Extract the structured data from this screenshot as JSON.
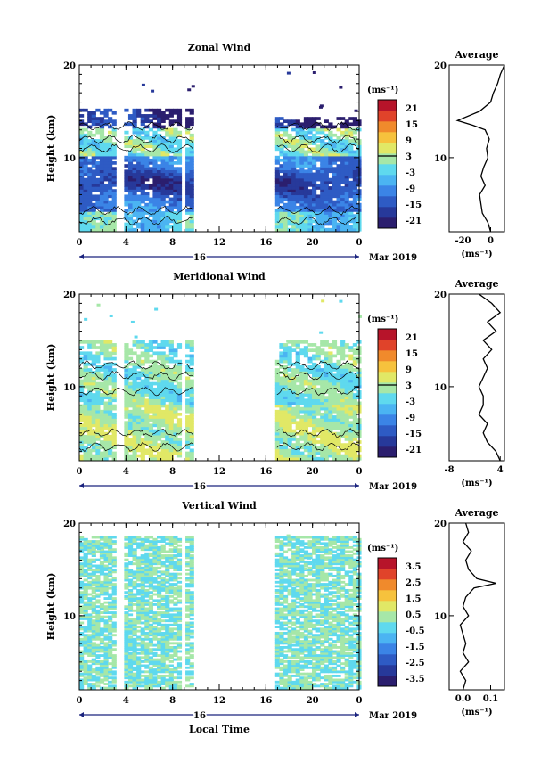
{
  "figure": {
    "xlabel": "Local Time",
    "date_label": "Mar 2019",
    "day_label": "16",
    "ylabel": "Height (km)",
    "unit_label": "(ms⁻¹)",
    "average_title": "Average"
  },
  "chart_data": [
    {
      "type": "heatmap",
      "title": "Zonal Wind",
      "xlabel": "Local Time",
      "ylabel": "Height (km)",
      "x_ticks": [
        "0",
        "4",
        "8",
        "12",
        "16",
        "20",
        "0"
      ],
      "xlim": [
        0,
        24
      ],
      "y_ticks": [
        "10",
        "20"
      ],
      "ylim": [
        2,
        20
      ],
      "data_gaps_hours": [
        [
          3.3,
          3.7
        ],
        [
          5.8,
          6.1
        ],
        [
          8.6,
          9.0
        ],
        [
          9.8,
          12.9
        ],
        [
          13.1,
          16.8
        ]
      ],
      "colorbar": {
        "label": "(ms⁻¹)",
        "ticks": [
          "21",
          "15",
          "9",
          "3",
          "-3",
          "-9",
          "-15",
          "-21"
        ],
        "range": [
          -24,
          24
        ]
      },
      "description": "Mostly negative (easterly) winds below ~13 km, strongest (about -15 to -21) near 6-9 km; weak/positive winds 10-13 km.",
      "average_profile": {
        "title": "Average",
        "xlabel": "(ms⁻¹)",
        "x_ticks": [
          "-20",
          "0"
        ],
        "xlim": [
          -30,
          10
        ],
        "y_ticks": [
          "10",
          "20"
        ],
        "height_km": [
          2,
          3,
          4,
          5,
          6,
          7,
          8,
          9,
          10,
          11,
          12,
          13,
          13.5,
          14,
          15,
          16,
          17,
          18,
          19,
          20
        ],
        "values": [
          0,
          -2,
          -6,
          -7,
          -8,
          -4,
          -7,
          -5,
          -2,
          -3,
          -1,
          -4,
          -13,
          -24,
          -8,
          0,
          2,
          5,
          7,
          10
        ]
      }
    },
    {
      "type": "heatmap",
      "title": "Meridional Wind",
      "xlabel": "Local Time",
      "ylabel": "Height (km)",
      "x_ticks": [
        "0",
        "4",
        "8",
        "12",
        "16",
        "20",
        "0"
      ],
      "xlim": [
        0,
        24
      ],
      "y_ticks": [
        "10",
        "20"
      ],
      "ylim": [
        2,
        20
      ],
      "data_gaps_hours": [
        [
          3.3,
          3.7
        ],
        [
          5.8,
          6.1
        ],
        [
          8.6,
          9.0
        ],
        [
          9.8,
          12.9
        ],
        [
          13.1,
          16.8
        ]
      ],
      "colorbar": {
        "label": "(ms⁻¹)",
        "ticks": [
          "21",
          "15",
          "9",
          "3",
          "-3",
          "-9",
          "-15",
          "-21"
        ],
        "range": [
          -24,
          24
        ]
      },
      "description": "Weak meridional winds mostly between -3 and +3; slightly positive near 4-7 km.",
      "average_profile": {
        "title": "Average",
        "xlabel": "(ms⁻¹)",
        "x_ticks": [
          "-8",
          "4"
        ],
        "xlim": [
          -8,
          5
        ],
        "y_ticks": [
          "10",
          "20"
        ],
        "height_km": [
          2,
          3,
          4,
          5,
          6,
          7,
          8,
          9,
          10,
          11,
          12,
          13,
          14,
          15,
          16,
          17,
          18,
          19,
          20
        ],
        "values": [
          4,
          3,
          1,
          0,
          1,
          -1,
          0,
          0,
          -1,
          0,
          1,
          0,
          2,
          0,
          3,
          1,
          4,
          2,
          -1
        ]
      }
    },
    {
      "type": "heatmap",
      "title": "Vertical Wind",
      "xlabel": "Local Time",
      "ylabel": "Height (km)",
      "x_ticks": [
        "0",
        "4",
        "8",
        "12",
        "16",
        "20",
        "0"
      ],
      "xlim": [
        0,
        24
      ],
      "y_ticks": [
        "10",
        "20"
      ],
      "ylim": [
        2,
        20
      ],
      "data_gaps_hours": [
        [
          3.3,
          3.7
        ],
        [
          5.8,
          6.1
        ],
        [
          8.6,
          9.0
        ],
        [
          9.8,
          12.9
        ],
        [
          13.1,
          16.8
        ]
      ],
      "colorbar": {
        "label": "(ms⁻¹)",
        "ticks": [
          "3.5",
          "2.5",
          "1.5",
          "0.5",
          "-0.5",
          "-1.5",
          "-2.5",
          "-3.5"
        ],
        "range": [
          -4,
          4
        ]
      },
      "description": "Vertical wind close to zero everywhere (about -0.5 to 0.5).",
      "average_profile": {
        "title": "Average",
        "xlabel": "(ms⁻¹)",
        "x_ticks": [
          "0.0",
          "0.1"
        ],
        "xlim": [
          -0.05,
          0.15
        ],
        "y_ticks": [
          "10",
          "20"
        ],
        "height_km": [
          2,
          3,
          4,
          5,
          6,
          7,
          8,
          9,
          10,
          11,
          12,
          13,
          13.5,
          14,
          15,
          16,
          17,
          18,
          19,
          20
        ],
        "values": [
          0.0,
          0.01,
          -0.01,
          0.02,
          0.0,
          0.01,
          0.0,
          -0.01,
          0.02,
          0.0,
          0.01,
          0.04,
          0.12,
          0.05,
          0.02,
          0.01,
          0.03,
          0.0,
          0.02,
          0.01
        ]
      }
    }
  ]
}
